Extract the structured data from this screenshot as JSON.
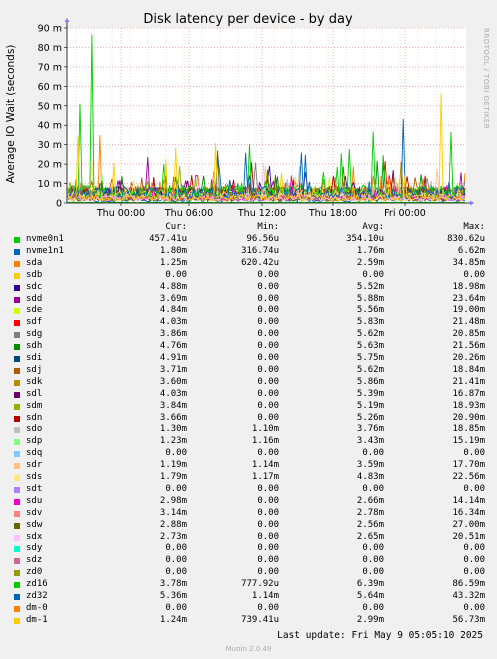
{
  "chart_data": {
    "type": "line",
    "title": "Disk latency per device - by day",
    "ylabel": "Average IO Wait (seconds)",
    "side_label": "RRDTOOL / TOBI OETIKER",
    "ylim": [
      0,
      90
    ],
    "y_ticks": [
      "0",
      "10 m",
      "20 m",
      "30 m",
      "40 m",
      "50 m",
      "60 m",
      "70 m",
      "80 m",
      "90 m"
    ],
    "x_ticks": [
      "Thu 00:00",
      "Thu 06:00",
      "Thu 12:00",
      "Thu 18:00",
      "Fri 00:00"
    ],
    "grid": true,
    "legend_headers": [
      "Cur:",
      "Min:",
      "Avg:",
      "Max:"
    ],
    "series": [
      {
        "name": "nvme0n1",
        "color": "#00cc00",
        "cur": "457.41u",
        "min": "96.56u",
        "avg": "354.10u",
        "max": "830.62u"
      },
      {
        "name": "nvme1n1",
        "color": "#0066b3",
        "cur": "1.80m",
        "min": "316.74u",
        "avg": "1.76m",
        "max": "6.62m"
      },
      {
        "name": "sda",
        "color": "#ff8000",
        "cur": "1.25m",
        "min": "620.42u",
        "avg": "2.59m",
        "max": "34.85m"
      },
      {
        "name": "sdb",
        "color": "#ffcc00",
        "cur": "0.00",
        "min": "0.00",
        "avg": "0.00",
        "max": "0.00"
      },
      {
        "name": "sdc",
        "color": "#330099",
        "cur": "4.88m",
        "min": "0.00",
        "avg": "5.52m",
        "max": "18.98m"
      },
      {
        "name": "sdd",
        "color": "#990099",
        "cur": "3.69m",
        "min": "0.00",
        "avg": "5.88m",
        "max": "23.64m"
      },
      {
        "name": "sde",
        "color": "#ccff00",
        "cur": "4.84m",
        "min": "0.00",
        "avg": "5.56m",
        "max": "19.00m"
      },
      {
        "name": "sdf",
        "color": "#ff0000",
        "cur": "4.03m",
        "min": "0.00",
        "avg": "5.83m",
        "max": "21.48m"
      },
      {
        "name": "sdg",
        "color": "#808080",
        "cur": "3.86m",
        "min": "0.00",
        "avg": "5.62m",
        "max": "20.85m"
      },
      {
        "name": "sdh",
        "color": "#008f00",
        "cur": "4.76m",
        "min": "0.00",
        "avg": "5.63m",
        "max": "21.56m"
      },
      {
        "name": "sdi",
        "color": "#00487d",
        "cur": "4.91m",
        "min": "0.00",
        "avg": "5.75m",
        "max": "20.26m"
      },
      {
        "name": "sdj",
        "color": "#b35a00",
        "cur": "3.71m",
        "min": "0.00",
        "avg": "5.62m",
        "max": "18.84m"
      },
      {
        "name": "sdk",
        "color": "#b38f00",
        "cur": "3.60m",
        "min": "0.00",
        "avg": "5.86m",
        "max": "21.41m"
      },
      {
        "name": "sdl",
        "color": "#6b006b",
        "cur": "4.03m",
        "min": "0.00",
        "avg": "5.39m",
        "max": "16.87m"
      },
      {
        "name": "sdm",
        "color": "#8fb300",
        "cur": "3.84m",
        "min": "0.00",
        "avg": "5.19m",
        "max": "18.93m"
      },
      {
        "name": "sdn",
        "color": "#b30000",
        "cur": "3.66m",
        "min": "0.00",
        "avg": "5.26m",
        "max": "20.90m"
      },
      {
        "name": "sdo",
        "color": "#bebebe",
        "cur": "1.30m",
        "min": "1.10m",
        "avg": "3.76m",
        "max": "18.85m"
      },
      {
        "name": "sdp",
        "color": "#80ff80",
        "cur": "1.23m",
        "min": "1.16m",
        "avg": "3.43m",
        "max": "15.19m"
      },
      {
        "name": "sdq",
        "color": "#80c9ff",
        "cur": "0.00",
        "min": "0.00",
        "avg": "0.00",
        "max": "0.00"
      },
      {
        "name": "sdr",
        "color": "#ffc080",
        "cur": "1.19m",
        "min": "1.14m",
        "avg": "3.59m",
        "max": "17.70m"
      },
      {
        "name": "sds",
        "color": "#ffe680",
        "cur": "1.79m",
        "min": "1.17m",
        "avg": "4.83m",
        "max": "22.56m"
      },
      {
        "name": "sdt",
        "color": "#aa80ff",
        "cur": "0.00",
        "min": "0.00",
        "avg": "0.00",
        "max": "0.00"
      },
      {
        "name": "sdu",
        "color": "#ee00cc",
        "cur": "2.98m",
        "min": "0.00",
        "avg": "2.66m",
        "max": "14.14m"
      },
      {
        "name": "sdv",
        "color": "#ff8080",
        "cur": "3.14m",
        "min": "0.00",
        "avg": "2.78m",
        "max": "16.34m"
      },
      {
        "name": "sdw",
        "color": "#666600",
        "cur": "2.88m",
        "min": "0.00",
        "avg": "2.56m",
        "max": "27.00m"
      },
      {
        "name": "sdx",
        "color": "#ffbfff",
        "cur": "2.73m",
        "min": "0.00",
        "avg": "2.65m",
        "max": "20.51m"
      },
      {
        "name": "sdy",
        "color": "#00ffcc",
        "cur": "0.00",
        "min": "0.00",
        "avg": "0.00",
        "max": "0.00"
      },
      {
        "name": "sdz",
        "color": "#cc6699",
        "cur": "0.00",
        "min": "0.00",
        "avg": "0.00",
        "max": "0.00"
      },
      {
        "name": "zd0",
        "color": "#999900",
        "cur": "0.00",
        "min": "0.00",
        "avg": "0.00",
        "max": "0.00"
      },
      {
        "name": "zd16",
        "color": "#00cc00",
        "cur": "3.78m",
        "min": "777.92u",
        "avg": "6.39m",
        "max": "86.59m"
      },
      {
        "name": "zd32",
        "color": "#0066b3",
        "cur": "5.36m",
        "min": "1.14m",
        "avg": "5.64m",
        "max": "43.32m"
      },
      {
        "name": "dm-0",
        "color": "#ff8000",
        "cur": "0.00",
        "min": "0.00",
        "avg": "0.00",
        "max": "0.00"
      },
      {
        "name": "dm-1",
        "color": "#ffcc00",
        "cur": "1.24m",
        "min": "739.41u",
        "avg": "2.99m",
        "max": "56.73m"
      }
    ]
  },
  "footer": {
    "last_update": "Last update: Fri May  9 05:05:10 2025",
    "version": "Munin 2.0.49"
  }
}
